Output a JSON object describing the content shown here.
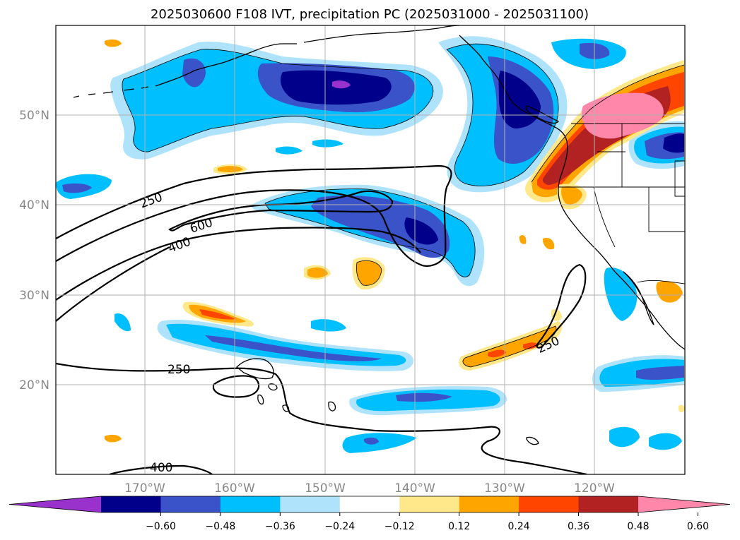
{
  "title": "2025030600 F108 IVT, precipitation PC (2025031000 - 2025031100)",
  "map": {
    "projection": "PlateCarree",
    "lon_range": [
      -180,
      -110
    ],
    "lat_range": [
      10,
      60
    ],
    "grid": true,
    "lon_ticks": [
      "170°W",
      "160°W",
      "150°W",
      "140°W",
      "130°W",
      "120°W"
    ],
    "lat_ticks": [
      "50°N",
      "40°N",
      "30°N",
      "20°N"
    ]
  },
  "contours": {
    "variable": "IVT",
    "line_color": "#000000",
    "labels": [
      "250",
      "600",
      "400",
      "250",
      "250",
      "400"
    ]
  },
  "colorbar": {
    "orientation": "horizontal",
    "extend": "both",
    "ticks": [
      "−0.60",
      "−0.48",
      "−0.36",
      "−0.24",
      "−0.12",
      "0.12",
      "0.24",
      "0.36",
      "0.48",
      "0.60"
    ],
    "colors": [
      "#9932cc",
      "#00008b",
      "#3a53c9",
      "#00bfff",
      "#aee3fb",
      "#ffffff",
      "#ffe88a",
      "#ffa500",
      "#ff4500",
      "#b22222",
      "#ff88aa"
    ]
  },
  "chart_data": {
    "type": "heatmap",
    "title": "2025030600 F108 IVT, precipitation PC (2025031000 - 2025031100)",
    "xlabel": "",
    "ylabel": "",
    "xlim": [
      -180,
      -110
    ],
    "ylim": [
      10,
      60
    ],
    "color_levels": [
      -0.6,
      -0.48,
      -0.36,
      -0.24,
      -0.12,
      0.12,
      0.24,
      0.36,
      0.48,
      0.6
    ],
    "contour_labels": [
      250,
      600,
      400,
      250,
      250,
      400
    ]
  }
}
